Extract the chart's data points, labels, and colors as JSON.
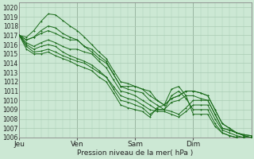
{
  "title": "",
  "xlabel": "Pression niveau de la mer( hPa )",
  "ylim": [
    1006,
    1020.5
  ],
  "yticks": [
    1006,
    1007,
    1008,
    1009,
    1010,
    1011,
    1012,
    1013,
    1014,
    1015,
    1016,
    1017,
    1018,
    1019,
    1020
  ],
  "day_labels": [
    "Jeu",
    "Ven",
    "Sam",
    "Dim"
  ],
  "day_positions": [
    0,
    24,
    48,
    72
  ],
  "bg_color": "#cce8d4",
  "fig_color": "#cce8d4",
  "grid_color": "#aaccb4",
  "line_color": "#1a6b1a",
  "marker_color": "#1a6b1a",
  "total_hours": 96,
  "series": [
    {
      "x": [
        0,
        3,
        6,
        9,
        12,
        15,
        18,
        21,
        24,
        27,
        30,
        33,
        36,
        39,
        42,
        45,
        48,
        51,
        54,
        57,
        60,
        63,
        66,
        69,
        72,
        75,
        78,
        81,
        84,
        87,
        90,
        93,
        96
      ],
      "y": [
        1017.0,
        1016.8,
        1017.5,
        1018.5,
        1019.3,
        1019.2,
        1018.6,
        1018.0,
        1017.5,
        1016.8,
        1016.0,
        1015.2,
        1014.5,
        1013.2,
        1012.0,
        1011.8,
        1011.5,
        1011.2,
        1010.5,
        1010.0,
        1009.5,
        1010.2,
        1010.5,
        1011.0,
        1011.0,
        1010.8,
        1010.5,
        1009.0,
        1007.5,
        1007.0,
        1006.5,
        1006.3,
        1006.2
      ]
    },
    {
      "x": [
        0,
        3,
        6,
        9,
        12,
        15,
        18,
        21,
        24,
        27,
        30,
        33,
        36,
        39,
        42,
        45,
        48,
        51,
        54,
        57,
        60,
        63,
        66,
        69,
        72,
        75,
        78,
        81,
        84,
        87,
        90,
        93,
        96
      ],
      "y": [
        1017.0,
        1016.5,
        1016.8,
        1017.5,
        1018.0,
        1017.8,
        1017.2,
        1016.8,
        1016.5,
        1015.8,
        1015.2,
        1014.5,
        1014.0,
        1012.8,
        1011.5,
        1011.2,
        1011.0,
        1010.8,
        1010.0,
        1009.5,
        1009.0,
        1009.8,
        1010.0,
        1010.5,
        1010.5,
        1010.2,
        1010.0,
        1008.5,
        1007.0,
        1006.8,
        1006.5,
        1006.2,
        1006.0
      ]
    },
    {
      "x": [
        0,
        3,
        6,
        9,
        12,
        15,
        18,
        21,
        24,
        27,
        30,
        33,
        36,
        39,
        42,
        45,
        48,
        51,
        54,
        57,
        60,
        63,
        66,
        69,
        72,
        75,
        78,
        81,
        84,
        87,
        90,
        93,
        96
      ],
      "y": [
        1017.0,
        1016.2,
        1015.8,
        1016.2,
        1016.5,
        1016.2,
        1015.8,
        1015.5,
        1015.5,
        1015.2,
        1015.0,
        1014.2,
        1013.5,
        1012.2,
        1011.0,
        1010.8,
        1010.5,
        1010.0,
        1009.5,
        1009.0,
        1009.0,
        1008.8,
        1008.5,
        1009.2,
        1010.0,
        1010.0,
        1010.0,
        1008.5,
        1007.0,
        1006.8,
        1006.5,
        1006.2,
        1006.0
      ]
    },
    {
      "x": [
        0,
        3,
        6,
        9,
        12,
        15,
        18,
        21,
        24,
        27,
        30,
        33,
        36,
        39,
        42,
        45,
        48,
        51,
        54,
        57,
        60,
        63,
        66,
        69,
        72,
        75,
        78,
        81,
        84,
        87,
        90,
        93,
        96
      ],
      "y": [
        1017.0,
        1016.0,
        1015.5,
        1015.8,
        1016.0,
        1015.8,
        1015.2,
        1014.8,
        1014.5,
        1014.2,
        1013.8,
        1013.2,
        1012.5,
        1011.5,
        1010.5,
        1010.2,
        1010.0,
        1009.5,
        1009.0,
        1008.8,
        1008.8,
        1008.5,
        1008.2,
        1008.8,
        1009.5,
        1009.5,
        1009.5,
        1008.0,
        1006.8,
        1006.5,
        1006.2,
        1006.0,
        1006.0
      ]
    },
    {
      "x": [
        0,
        3,
        6,
        9,
        12,
        15,
        18,
        21,
        24,
        27,
        30,
        33,
        36,
        39,
        42,
        45,
        48,
        51,
        54,
        57,
        60,
        63,
        66,
        69,
        72,
        75,
        78,
        81,
        84,
        87,
        90,
        93,
        96
      ],
      "y": [
        1017.0,
        1015.8,
        1015.2,
        1015.3,
        1015.5,
        1015.2,
        1014.8,
        1014.5,
        1014.2,
        1014.0,
        1013.5,
        1013.0,
        1012.5,
        1011.2,
        1010.0,
        1009.8,
        1009.5,
        1009.2,
        1008.5,
        1009.0,
        1009.0,
        1010.5,
        1011.0,
        1010.2,
        1009.0,
        1009.0,
        1009.0,
        1007.5,
        1006.5,
        1006.2,
        1006.0,
        1006.0,
        1006.0
      ]
    },
    {
      "x": [
        0,
        3,
        6,
        9,
        12,
        15,
        18,
        21,
        24,
        27,
        30,
        33,
        36,
        39,
        42,
        45,
        48,
        51,
        54,
        57,
        60,
        63,
        66,
        69,
        72,
        75,
        78,
        81,
        84,
        87,
        90,
        93,
        96
      ],
      "y": [
        1017.0,
        1015.5,
        1015.0,
        1015.0,
        1015.2,
        1014.8,
        1014.5,
        1014.2,
        1013.8,
        1013.5,
        1013.2,
        1012.5,
        1012.0,
        1010.8,
        1009.5,
        1009.2,
        1009.0,
        1008.8,
        1008.2,
        1009.2,
        1009.5,
        1011.2,
        1011.5,
        1010.5,
        1008.5,
        1008.5,
        1008.5,
        1007.2,
        1006.5,
        1006.2,
        1006.0,
        1006.0,
        1006.0
      ]
    },
    {
      "x": [
        0,
        3,
        6,
        9,
        12,
        15,
        18,
        21,
        24,
        27,
        30,
        33,
        36,
        39,
        42,
        45,
        48,
        51,
        54,
        57,
        60,
        63,
        66,
        69,
        72,
        75,
        78,
        81,
        84,
        87,
        90,
        93,
        96
      ],
      "y": [
        1017.0,
        1016.5,
        1016.8,
        1017.2,
        1017.5,
        1017.2,
        1016.8,
        1016.5,
        1016.5,
        1015.8,
        1015.5,
        1014.8,
        1014.2,
        1012.8,
        1011.5,
        1011.5,
        1011.5,
        1011.2,
        1011.0,
        1010.0,
        1009.5,
        1010.2,
        1010.5,
        1011.0,
        1011.0,
        1010.8,
        1010.5,
        1009.0,
        1007.5,
        1007.0,
        1006.5,
        1006.3,
        1006.2
      ]
    }
  ]
}
